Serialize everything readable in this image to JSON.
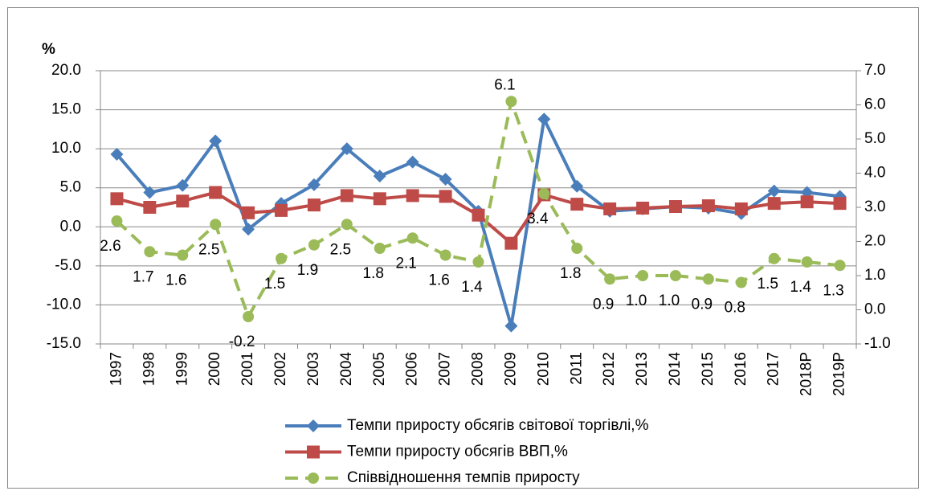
{
  "chart_data": {
    "type": "line",
    "y_label": "%",
    "categories": [
      "1997",
      "1998",
      "1999",
      "2000",
      "2001",
      "2002",
      "2003",
      "2004",
      "2005",
      "2006",
      "2007",
      "2008",
      "2009",
      "2010",
      "2011",
      "2012",
      "2013",
      "2014",
      "2015",
      "2016",
      "2017",
      "2018Р",
      "2019Р"
    ],
    "series": [
      {
        "name": "Темпи приросту обсягів світової торгівлі,%",
        "color": "#4a7ebb",
        "marker": "diamond",
        "axis": "y",
        "values": [
          9.3,
          4.4,
          5.3,
          11.0,
          -0.3,
          3.0,
          5.4,
          10.0,
          6.5,
          8.3,
          6.1,
          2.0,
          -12.7,
          13.8,
          5.2,
          2.0,
          2.3,
          2.6,
          2.4,
          1.7,
          4.6,
          4.4,
          3.9
        ]
      },
      {
        "name": "Темпи приросту обсягів ВВП,%",
        "color": "#be4b48",
        "marker": "square",
        "axis": "y",
        "values": [
          3.6,
          2.5,
          3.3,
          4.4,
          1.8,
          2.1,
          2.8,
          4.0,
          3.6,
          4.0,
          3.9,
          1.5,
          -2.1,
          4.1,
          2.9,
          2.3,
          2.4,
          2.6,
          2.7,
          2.3,
          3.0,
          3.2,
          3.0
        ]
      },
      {
        "name": "Співвідношення темпів приросту",
        "color": "#9bbb59",
        "marker": "circle",
        "dashed": true,
        "axis": "y2",
        "values": [
          2.6,
          1.7,
          1.6,
          2.5,
          -0.2,
          1.5,
          1.9,
          2.5,
          1.8,
          2.1,
          1.6,
          1.4,
          6.1,
          3.4,
          1.8,
          0.9,
          1.0,
          1.0,
          0.9,
          0.8,
          1.5,
          1.4,
          1.3
        ],
        "value_labels": [
          "2.6",
          "1.7",
          "1.6",
          "2.5",
          "-0.2",
          "1.5",
          "1.9",
          "2.5",
          "1.8",
          "2.1",
          "1.6",
          "1.4",
          "6.1",
          "3.4",
          "1.8",
          "0.9",
          "1.0",
          "1.0",
          "0.9",
          "0.8",
          "1.5",
          "1.4",
          "1.3"
        ]
      }
    ],
    "ylim": [
      -15,
      20
    ],
    "yticks": [
      {
        "value": -15,
        "label": "-15.0"
      },
      {
        "value": -10,
        "label": "-10.0"
      },
      {
        "value": -5,
        "label": "-5.0"
      },
      {
        "value": 0,
        "label": "0.0"
      },
      {
        "value": 5,
        "label": "5.0"
      },
      {
        "value": 10,
        "label": "10.0"
      },
      {
        "value": 15,
        "label": "15.0"
      },
      {
        "value": 20,
        "label": "20.0"
      }
    ],
    "y2lim": [
      -1,
      7
    ],
    "y2ticks": [
      {
        "value": -1,
        "label": "-1.0"
      },
      {
        "value": 0,
        "label": "0.0"
      },
      {
        "value": 1,
        "label": "1.0"
      },
      {
        "value": 2,
        "label": "2.0"
      },
      {
        "value": 3,
        "label": "3.0"
      },
      {
        "value": 4,
        "label": "4.0"
      },
      {
        "value": 5,
        "label": "5.0"
      },
      {
        "value": 6,
        "label": "6.0"
      },
      {
        "value": 7,
        "label": "7.0"
      }
    ],
    "grid": true,
    "legend": "bottom"
  }
}
